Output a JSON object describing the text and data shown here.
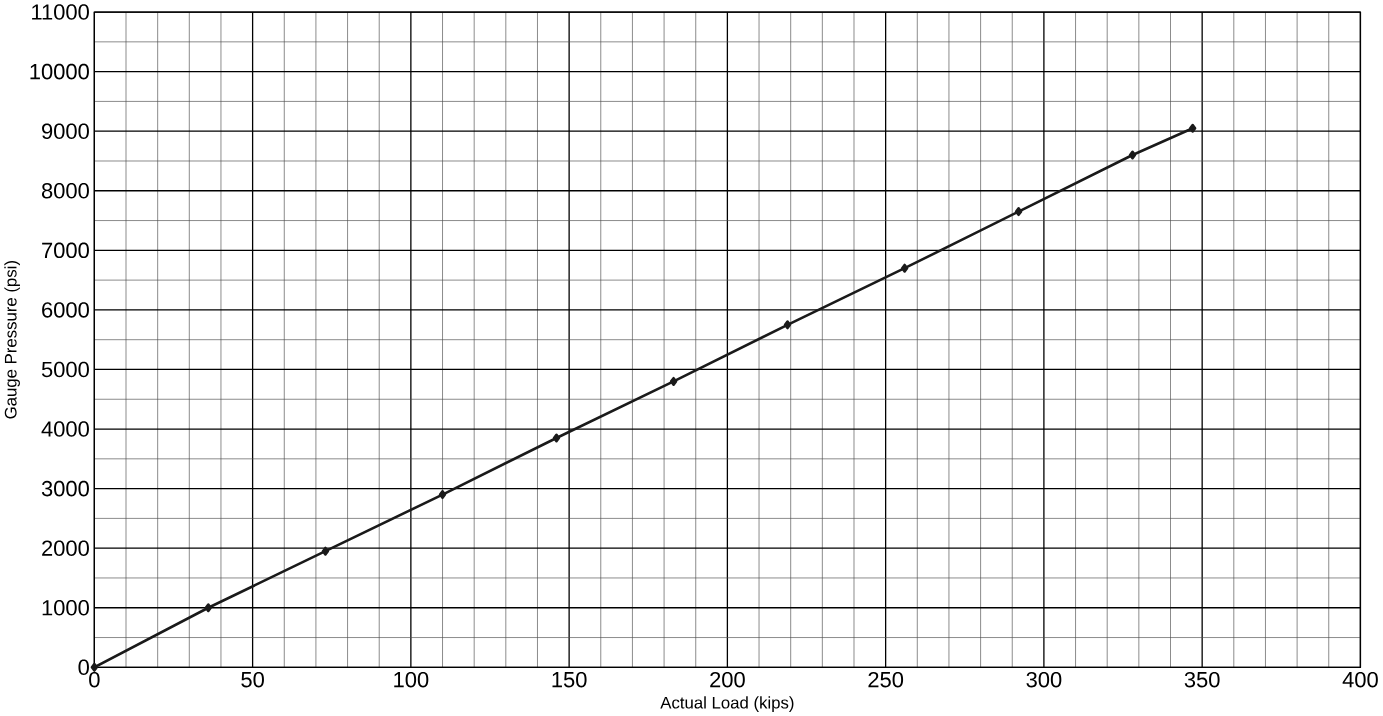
{
  "chart_data": {
    "type": "line",
    "xlabel": "Actual Load (kips)",
    "ylabel": "Gauge Pressure (psi)",
    "x": [
      0,
      36,
      73,
      110,
      146,
      183,
      219,
      256,
      292,
      328,
      347
    ],
    "values": [
      0,
      1000,
      1950,
      2900,
      3850,
      4800,
      5750,
      6700,
      7650,
      8600,
      9050
    ],
    "color": "#1a1a1a",
    "marker": "diamond",
    "line_style": "solid",
    "grid": true,
    "xlim": [
      0,
      400
    ],
    "ylim": [
      0,
      11000
    ],
    "xticks": [
      0,
      50,
      100,
      150,
      200,
      250,
      300,
      350,
      400
    ],
    "yticks": [
      0,
      1000,
      2000,
      3000,
      4000,
      5000,
      6000,
      7000,
      8000,
      9000,
      10000,
      11000
    ]
  }
}
